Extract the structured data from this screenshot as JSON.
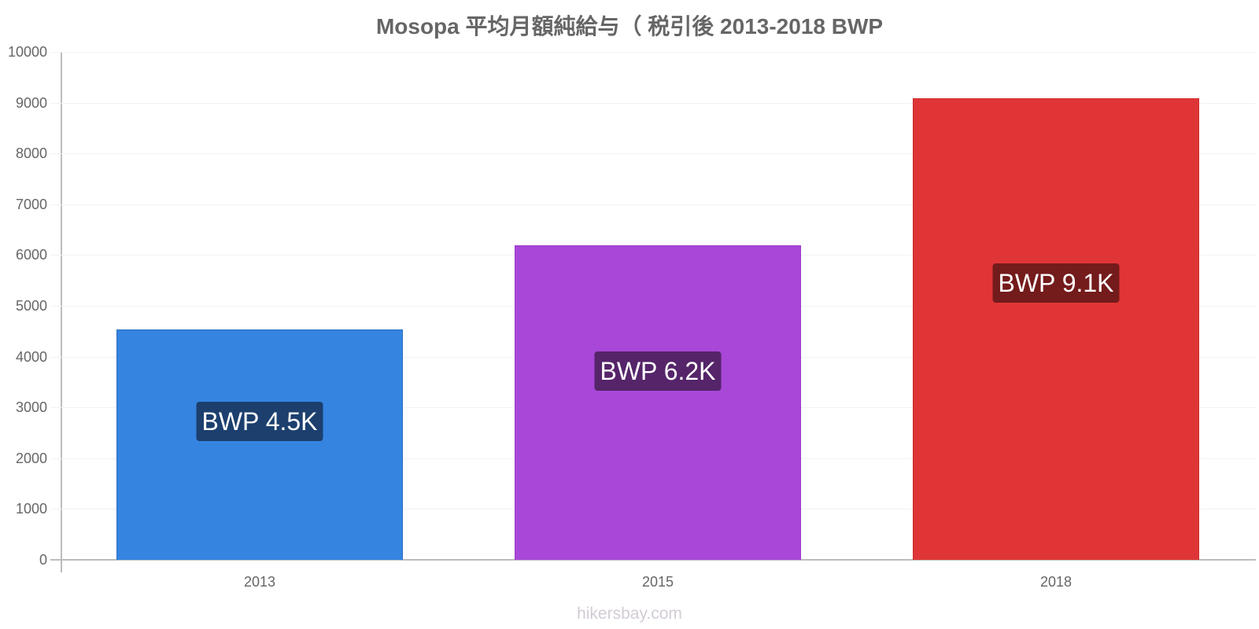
{
  "title": "Mosopa 平均月額純給与（ 税引後 2013-2018 BWP",
  "footer": "hikersbay.com",
  "y_ticks": [
    "0",
    "1000",
    "2000",
    "3000",
    "4000",
    "5000",
    "6000",
    "7000",
    "8000",
    "9000",
    "10000"
  ],
  "bars": [
    {
      "category": "2013",
      "value": 4535,
      "label": "BWP 4.5K",
      "color": "#3584e0",
      "border": "#2a6fc2",
      "label_bg": "#1c3f6e"
    },
    {
      "category": "2015",
      "value": 6192,
      "label": "BWP 6.2K",
      "color": "#a847d8",
      "border": "#9a3bc9",
      "label_bg": "#552469"
    },
    {
      "category": "2018",
      "value": 9087,
      "label": "BWP 9.1K",
      "color": "#e03536",
      "border": "#cf2a2b",
      "label_bg": "#741b1b"
    }
  ],
  "chart_data": {
    "type": "bar",
    "title": "Mosopa 平均月額純給与（ 税引後 2013-2018 BWP",
    "categories": [
      "2013",
      "2015",
      "2018"
    ],
    "values": [
      4535,
      6192,
      9087
    ],
    "data_labels": [
      "BWP 4.5K",
      "BWP 6.2K",
      "BWP 9.1K"
    ],
    "xlabel": "",
    "ylabel": "",
    "ylim": [
      0,
      10000
    ],
    "yticks": [
      0,
      1000,
      2000,
      3000,
      4000,
      5000,
      6000,
      7000,
      8000,
      9000,
      10000
    ],
    "grid": true,
    "legend": null,
    "colors": [
      "#3584e0",
      "#a847d8",
      "#e03536"
    ],
    "source": "hikersbay.com"
  }
}
